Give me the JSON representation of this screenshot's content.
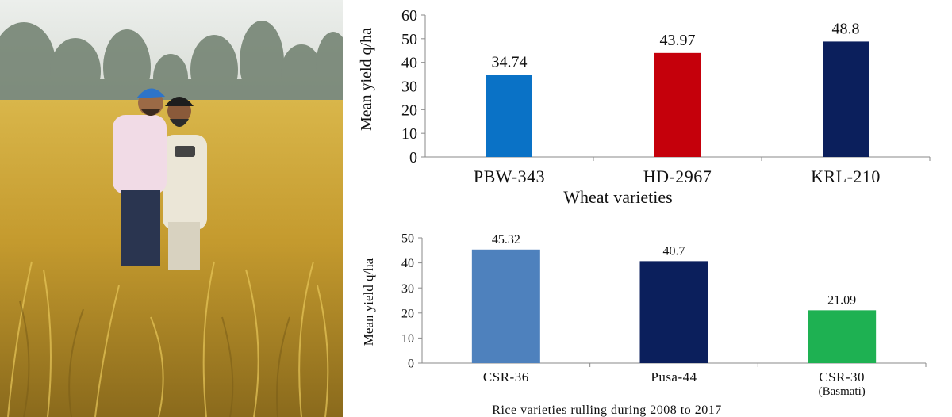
{
  "colors": {
    "sky": "#dfe3de",
    "treeline": "#6f7f6e",
    "field_light": "#d9b64a",
    "field_dark": "#9b7a1f",
    "field_shadow": "#5f4d16"
  },
  "chart_data": [
    {
      "type": "bar",
      "categories": [
        "PBW-343",
        "HD-2967",
        "KRL-210"
      ],
      "values": [
        34.74,
        43.97,
        48.8
      ],
      "data_labels": [
        "34.74",
        "43.97",
        "48.8"
      ],
      "bar_colors": [
        "#0a72c6",
        "#c5000b",
        "#0b1f5c"
      ],
      "title": "",
      "xlabel": "Wheat varieties",
      "ylabel": "Mean yield q/ha",
      "ylim": [
        0,
        60
      ],
      "yticks": [
        0,
        10,
        20,
        30,
        40,
        50,
        60
      ],
      "grid": false,
      "legend": "none"
    },
    {
      "type": "bar",
      "categories": [
        "CSR-36",
        "Pusa-44",
        "CSR-30"
      ],
      "category_sublabels": [
        "",
        "",
        "(Basmati)"
      ],
      "values": [
        45.32,
        40.7,
        21.09
      ],
      "data_labels": [
        "45.32",
        "40.7",
        "21.09"
      ],
      "bar_colors": [
        "#4e81bd",
        "#0b1f5c",
        "#1eb152"
      ],
      "title": "",
      "xlabel": "Rice varieties rulling during 2008 to 2017",
      "ylabel": "Mean yield q/ha",
      "ylim": [
        0,
        50
      ],
      "yticks": [
        0,
        10,
        20,
        30,
        40,
        50
      ],
      "grid": false,
      "legend": "none"
    }
  ]
}
